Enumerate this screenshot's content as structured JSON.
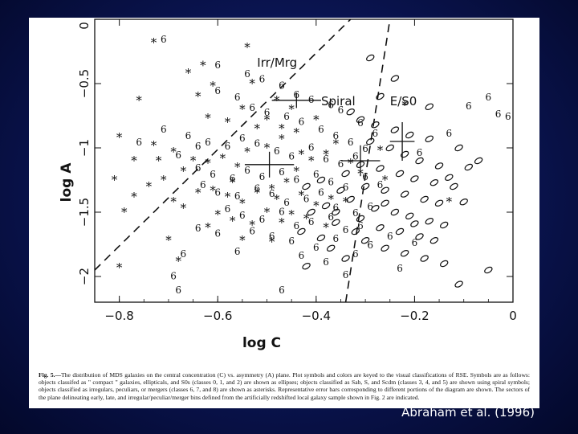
{
  "credit": "Abraham et al. (1996)",
  "caption": {
    "label": "Fig. 5.—",
    "text": "The distribution of MDS galaxies on the central concentration (C) vs. asymmetry (A) plane. Plot symbols and colors are keyed to the visual classifications of RSE. Symbols are as follows: objects classifed as \" compact \" galaxies, ellipticals, and S0s (classes 0, 1, and 2) are shown as ellipses; objects classified as Sab, S, and Scdm (classes 3, 4, and 5) are shown using spiral symbols; objects classified as irregulars, peculiars, or mergers (classes 6, 7, and 8) are shown as asterisks. Representative error bars corresponding to different portions of the diagram are shown. The sectors of the plane delineating early, late, and irregular/peculiar/merger bins defined from the artificially redshifted local galaxy sample shown in Fig. 2 are indicated."
  },
  "chart_data": {
    "type": "scatter",
    "title": "",
    "xlabel": "log C",
    "ylabel": "log A",
    "xlim": [
      -0.85,
      0
    ],
    "ylim": [
      -2.2,
      0
    ],
    "xticks": [
      -0.8,
      -0.6,
      -0.4,
      -0.2,
      0
    ],
    "xtick_labels": [
      "−0.8",
      "−0.6",
      "−0.4",
      "−0.2",
      "0"
    ],
    "yticks": [
      -0.5,
      -1,
      -1.5,
      -2
    ],
    "ytick_labels": [
      "−0.5",
      "−1",
      "−1.5",
      "−2"
    ],
    "grid": false,
    "legend": "none",
    "region_labels": [
      {
        "text": "Irr/Mrg",
        "x": -0.52,
        "y": -0.37
      },
      {
        "text": "Spiral",
        "x": -0.39,
        "y": -0.67
      },
      {
        "text": "E/S0",
        "x": -0.25,
        "y": -0.67
      }
    ],
    "boundaries": [
      {
        "style": "dashed",
        "points": [
          [
            -0.85,
            -1.95
          ],
          [
            -0.33,
            0
          ]
        ]
      },
      {
        "style": "dashed",
        "points": [
          [
            -0.34,
            -2.2
          ],
          [
            -0.25,
            0
          ]
        ]
      }
    ],
    "error_bars": [
      {
        "x": -0.44,
        "y": -0.63,
        "dx": 0.05,
        "dy": 0.06
      },
      {
        "x": -0.495,
        "y": -1.13,
        "dx": 0.05,
        "dy": 0.1
      },
      {
        "x": -0.31,
        "y": -1.1,
        "dx": 0.04,
        "dy": 0.12
      },
      {
        "x": -0.225,
        "y": -0.95,
        "dx": 0.025,
        "dy": 0.15
      }
    ],
    "series": [
      {
        "name": "Irr/Pec/Mrg (asterisks)",
        "symbol": "*",
        "points": [
          [
            -0.73,
            -0.18
          ],
          [
            -0.54,
            -0.22
          ],
          [
            -0.63,
            -0.36
          ],
          [
            -0.66,
            -0.42
          ],
          [
            -0.61,
            -0.52
          ],
          [
            -0.64,
            -0.6
          ],
          [
            -0.76,
            -0.63
          ],
          [
            -0.53,
            -0.5
          ],
          [
            -0.55,
            -0.7
          ],
          [
            -0.5,
            -0.78
          ],
          [
            -0.48,
            -0.63
          ],
          [
            -0.45,
            -0.7
          ],
          [
            -0.47,
            -0.85
          ],
          [
            -0.52,
            -0.85
          ],
          [
            -0.58,
            -0.8
          ],
          [
            -0.62,
            -0.77
          ],
          [
            -0.8,
            -0.92
          ],
          [
            -0.73,
            -0.98
          ],
          [
            -0.69,
            -1.03
          ],
          [
            -0.65,
            -1.1
          ],
          [
            -0.62,
            -1.12
          ],
          [
            -0.59,
            -1.08
          ],
          [
            -0.56,
            -1.15
          ],
          [
            -0.54,
            -1.03
          ],
          [
            -0.5,
            -1.0
          ],
          [
            -0.47,
            -0.93
          ],
          [
            -0.44,
            -0.88
          ],
          [
            -0.43,
            -1.05
          ],
          [
            -0.41,
            -1.1
          ],
          [
            -0.38,
            -1.05
          ],
          [
            -0.36,
            -0.97
          ],
          [
            -0.33,
            -1.12
          ],
          [
            -0.31,
            -1.2
          ],
          [
            -0.67,
            -1.18
          ],
          [
            -0.71,
            -1.25
          ],
          [
            -0.74,
            -1.3
          ],
          [
            -0.81,
            -1.25
          ],
          [
            -0.77,
            -1.38
          ],
          [
            -0.64,
            -1.35
          ],
          [
            -0.61,
            -1.33
          ],
          [
            -0.58,
            -1.38
          ],
          [
            -0.55,
            -1.43
          ],
          [
            -0.52,
            -1.35
          ],
          [
            -0.49,
            -1.32
          ],
          [
            -0.46,
            -1.27
          ],
          [
            -0.43,
            -1.37
          ],
          [
            -0.4,
            -1.45
          ],
          [
            -0.37,
            -1.4
          ],
          [
            -0.34,
            -1.42
          ],
          [
            -0.6,
            -1.52
          ],
          [
            -0.57,
            -1.57
          ],
          [
            -0.53,
            -1.6
          ],
          [
            -0.5,
            -1.5
          ],
          [
            -0.47,
            -1.58
          ],
          [
            -0.45,
            -1.52
          ],
          [
            -0.42,
            -1.55
          ],
          [
            -0.38,
            -1.62
          ],
          [
            -0.62,
            -1.62
          ],
          [
            -0.67,
            -1.47
          ],
          [
            -0.69,
            -1.42
          ],
          [
            -0.7,
            -1.72
          ],
          [
            -0.55,
            -1.72
          ],
          [
            -0.49,
            -1.73
          ],
          [
            -0.8,
            -1.93
          ],
          [
            -0.68,
            -1.88
          ],
          [
            -0.79,
            -1.5
          ],
          [
            -0.72,
            -1.1
          ],
          [
            -0.77,
            -1.1
          ],
          [
            -0.27,
            -1.02
          ],
          [
            -0.22,
            -0.67
          ],
          [
            -0.13,
            -1.42
          ],
          [
            -0.4,
            -0.78
          ],
          [
            -0.26,
            -1.25
          ],
          [
            -0.44,
            -1.18
          ],
          [
            -0.48,
            -1.4
          ],
          [
            -0.57,
            -1.27
          ]
        ]
      },
      {
        "name": "Sab/S/Scdm (spirals)",
        "symbol": "6",
        "points": [
          [
            -0.71,
            -0.15
          ],
          [
            -0.6,
            -0.35
          ],
          [
            -0.54,
            -0.42
          ],
          [
            -0.51,
            -0.46
          ],
          [
            -0.47,
            -0.51
          ],
          [
            -0.44,
            -0.58
          ],
          [
            -0.41,
            -0.62
          ],
          [
            -0.37,
            -0.66
          ],
          [
            -0.35,
            -0.7
          ],
          [
            -0.31,
            -0.8
          ],
          [
            -0.6,
            -0.55
          ],
          [
            -0.56,
            -0.6
          ],
          [
            -0.53,
            -0.68
          ],
          [
            -0.5,
            -0.72
          ],
          [
            -0.46,
            -0.75
          ],
          [
            -0.43,
            -0.79
          ],
          [
            -0.39,
            -0.85
          ],
          [
            -0.36,
            -0.9
          ],
          [
            -0.33,
            -0.95
          ],
          [
            -0.3,
            -1.0
          ],
          [
            -0.28,
            -0.88
          ],
          [
            -0.71,
            -0.85
          ],
          [
            -0.66,
            -0.9
          ],
          [
            -0.62,
            -0.95
          ],
          [
            -0.58,
            -0.98
          ],
          [
            -0.55,
            -0.92
          ],
          [
            -0.52,
            -0.96
          ],
          [
            -0.48,
            -1.02
          ],
          [
            -0.45,
            -1.06
          ],
          [
            -0.41,
            -0.99
          ],
          [
            -0.38,
            -1.08
          ],
          [
            -0.35,
            -1.12
          ],
          [
            -0.32,
            -1.06
          ],
          [
            -0.68,
            -1.05
          ],
          [
            -0.64,
            -1.15
          ],
          [
            -0.61,
            -1.2
          ],
          [
            -0.57,
            -1.23
          ],
          [
            -0.54,
            -1.17
          ],
          [
            -0.51,
            -1.22
          ],
          [
            -0.47,
            -1.18
          ],
          [
            -0.44,
            -1.24
          ],
          [
            -0.4,
            -1.2
          ],
          [
            -0.37,
            -1.26
          ],
          [
            -0.34,
            -1.3
          ],
          [
            -0.3,
            -1.22
          ],
          [
            -0.27,
            -1.28
          ],
          [
            -0.63,
            -1.28
          ],
          [
            -0.6,
            -1.34
          ],
          [
            -0.56,
            -1.37
          ],
          [
            -0.52,
            -1.31
          ],
          [
            -0.49,
            -1.35
          ],
          [
            -0.46,
            -1.42
          ],
          [
            -0.42,
            -1.39
          ],
          [
            -0.39,
            -1.34
          ],
          [
            -0.36,
            -1.46
          ],
          [
            -0.32,
            -1.5
          ],
          [
            -0.29,
            -1.45
          ],
          [
            -0.58,
            -1.47
          ],
          [
            -0.55,
            -1.52
          ],
          [
            -0.51,
            -1.55
          ],
          [
            -0.47,
            -1.49
          ],
          [
            -0.44,
            -1.6
          ],
          [
            -0.41,
            -1.57
          ],
          [
            -0.37,
            -1.53
          ],
          [
            -0.34,
            -1.63
          ],
          [
            -0.31,
            -1.6
          ],
          [
            -0.64,
            -1.62
          ],
          [
            -0.6,
            -1.66
          ],
          [
            -0.53,
            -1.64
          ],
          [
            -0.49,
            -1.68
          ],
          [
            -0.45,
            -1.72
          ],
          [
            -0.4,
            -1.77
          ],
          [
            -0.36,
            -1.7
          ],
          [
            -0.32,
            -1.82
          ],
          [
            -0.29,
            -1.75
          ],
          [
            -0.25,
            -1.68
          ],
          [
            -0.56,
            -1.8
          ],
          [
            -0.43,
            -1.83
          ],
          [
            -0.38,
            -1.88
          ],
          [
            -0.34,
            -1.98
          ],
          [
            -0.23,
            -1.93
          ],
          [
            -0.67,
            -1.82
          ],
          [
            -0.69,
            -1.99
          ],
          [
            -0.68,
            -2.1
          ],
          [
            -0.47,
            -2.1
          ],
          [
            -0.76,
            -0.95
          ],
          [
            -0.64,
            -0.98
          ],
          [
            -0.05,
            -0.6
          ],
          [
            -0.03,
            -0.73
          ],
          [
            -0.01,
            -0.75
          ],
          [
            -0.09,
            -0.67
          ],
          [
            -0.19,
            -1.03
          ],
          [
            -0.13,
            -0.88
          ],
          [
            -0.2,
            -1.73
          ]
        ]
      },
      {
        "name": "Compact/E/S0 (ellipses)",
        "symbol": "0",
        "points": [
          [
            -0.29,
            -0.3
          ],
          [
            -0.24,
            -0.46
          ],
          [
            -0.27,
            -0.6
          ],
          [
            -0.33,
            -0.72
          ],
          [
            -0.31,
            -0.78
          ],
          [
            -0.28,
            -0.82
          ],
          [
            -0.24,
            -0.86
          ],
          [
            -0.21,
            -0.9
          ],
          [
            -0.17,
            -0.93
          ],
          [
            -0.29,
            -0.95
          ],
          [
            -0.25,
            -1.0
          ],
          [
            -0.22,
            -1.05
          ],
          [
            -0.19,
            -1.1
          ],
          [
            -0.15,
            -1.14
          ],
          [
            -0.31,
            -1.13
          ],
          [
            -0.27,
            -1.16
          ],
          [
            -0.23,
            -1.2
          ],
          [
            -0.2,
            -1.24
          ],
          [
            -0.16,
            -1.27
          ],
          [
            -0.13,
            -1.23
          ],
          [
            -0.3,
            -1.3
          ],
          [
            -0.26,
            -1.33
          ],
          [
            -0.22,
            -1.36
          ],
          [
            -0.18,
            -1.4
          ],
          [
            -0.15,
            -1.43
          ],
          [
            -0.33,
            -1.4
          ],
          [
            -0.28,
            -1.47
          ],
          [
            -0.24,
            -1.5
          ],
          [
            -0.21,
            -1.53
          ],
          [
            -0.17,
            -1.57
          ],
          [
            -0.14,
            -1.6
          ],
          [
            -0.31,
            -1.55
          ],
          [
            -0.27,
            -1.62
          ],
          [
            -0.23,
            -1.65
          ],
          [
            -0.19,
            -1.69
          ],
          [
            -0.16,
            -1.72
          ],
          [
            -0.3,
            -1.72
          ],
          [
            -0.26,
            -1.78
          ],
          [
            -0.22,
            -1.82
          ],
          [
            -0.18,
            -1.86
          ],
          [
            -0.14,
            -1.9
          ],
          [
            -0.36,
            -1.58
          ],
          [
            -0.38,
            -1.45
          ],
          [
            -0.41,
            -1.5
          ],
          [
            -0.35,
            -1.33
          ],
          [
            -0.39,
            -1.25
          ],
          [
            -0.34,
            -1.2
          ],
          [
            -0.42,
            -1.3
          ],
          [
            -0.43,
            -1.65
          ],
          [
            -0.39,
            -1.7
          ],
          [
            -0.37,
            -1.78
          ],
          [
            -0.34,
            -1.86
          ],
          [
            -0.42,
            -1.92
          ],
          [
            -0.12,
            -1.3
          ],
          [
            -0.1,
            -1.42
          ],
          [
            -0.09,
            -1.15
          ],
          [
            -0.11,
            -1.0
          ],
          [
            -0.07,
            -1.1
          ],
          [
            -0.2,
            -1.59
          ],
          [
            -0.05,
            -1.95
          ],
          [
            -0.11,
            -2.06
          ],
          [
            -0.17,
            -0.68
          ],
          [
            -0.26,
            -1.43
          ],
          [
            -0.32,
            -1.65
          ],
          [
            -0.36,
            -1.5
          ]
        ]
      }
    ]
  }
}
